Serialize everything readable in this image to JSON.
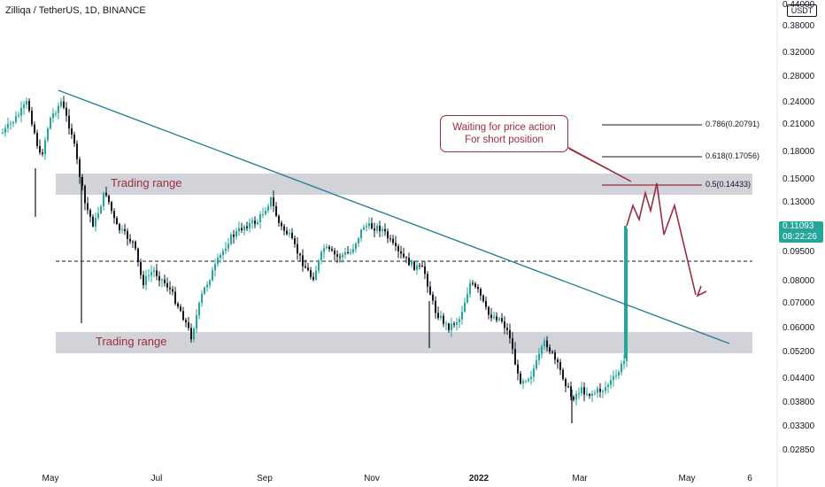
{
  "symbol_title": "Zilliqa / TetherUS, 1D, BINANCE",
  "currency": "USDT",
  "price_axis": [
    "0.44000",
    "0.38000",
    "0.32000",
    "0.28000",
    "0.24000",
    "0.21000",
    "0.18000",
    "0.15000",
    "0.13000",
    "0.09500",
    "0.08000",
    "0.07000",
    "0.06000",
    "0.05200",
    "0.04400",
    "0.03800",
    "0.03300",
    "0.02850"
  ],
  "time_axis": [
    "May",
    "Jul",
    "Sep",
    "Nov",
    "2022",
    "Mar",
    "May",
    "6"
  ],
  "current_price": {
    "value": "0.11093",
    "countdown": "08:22:26"
  },
  "annotations": {
    "upper_range_label": "Trading range",
    "lower_range_label": "Trading range",
    "callout_line1": "Waiting for price action",
    "callout_line2": "For short position",
    "fib_786": "0.786(0.20791)",
    "fib_618": "0.618(0.17056)",
    "fib_5": "0.5(0.14433)"
  },
  "colors": {
    "up": "#26a69a",
    "down": "#131722",
    "trendline": "#2a7f95",
    "annotation": "#9b2d3f",
    "range_box": "#c4c6ce"
  }
}
